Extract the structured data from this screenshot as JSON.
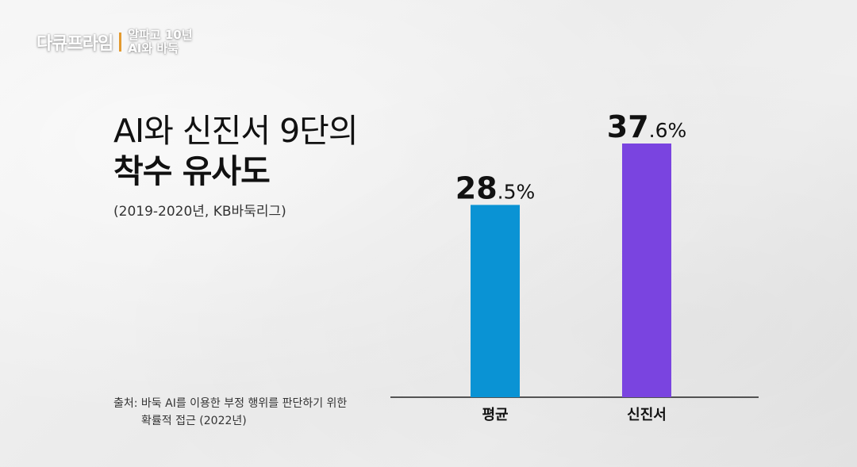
{
  "brand": {
    "name": "다큐프라임",
    "subtitle_line1": "알파고 10년",
    "subtitle_line2": "AI와 바둑"
  },
  "colors": {
    "avg_bar": "#0a93d4",
    "shin_bar": "#7a44e0",
    "axis": "#222222"
  },
  "chart_data": {
    "type": "bar",
    "title": "AI와 신진서 9단의",
    "title_line2": "착수 유사도",
    "subtitle": "(2019-2020년, KB바둑리그)",
    "categories": [
      "평균",
      "신진서"
    ],
    "values": [
      28.5,
      37.6
    ],
    "value_labels": [
      {
        "main": "28",
        "decimal": ".5%"
      },
      {
        "main": "37",
        "decimal": ".6%"
      }
    ],
    "ylim": [
      0,
      37.6
    ],
    "grid": false,
    "legend": "none"
  },
  "source": {
    "line1": "출처: 바둑 AI를 이용한 부정 행위를 판단하기 위한",
    "line2": "확률적 접근 (2022년)"
  }
}
